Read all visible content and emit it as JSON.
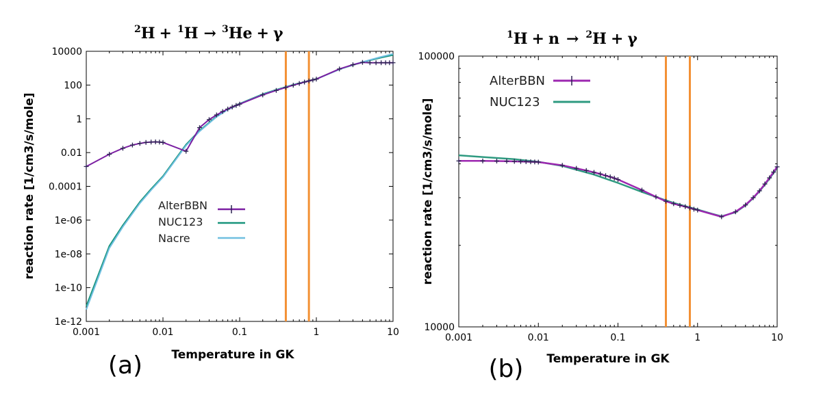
{
  "colors": {
    "alterbbn": "#7b1fa2",
    "alterbbn_b": "#9c27b0",
    "nuc123": "#17937a",
    "nuc123_b": "#2e9a80",
    "nacre": "#6fbfe0",
    "marker": "#2a2350",
    "vline": "#f39034"
  },
  "chart_data": [
    {
      "type": "line",
      "panel_label": "(a)",
      "title": {
        "a_sup": "2",
        "a": "H",
        "b_sup": "1",
        "b": "H",
        "c_sup": "3",
        "c": "He",
        "gamma": "γ",
        "plus": "+",
        "arrow": "→"
      },
      "xlabel": "Temperature in GK",
      "ylabel": "reaction rate [1/cm3/s/mole]",
      "xscale": "log",
      "yscale": "log",
      "xlim": [
        0.001,
        10
      ],
      "ylim": [
        1e-12,
        10000
      ],
      "xticks": [
        {
          "v": 0.001,
          "label": "0.001"
        },
        {
          "v": 0.01,
          "label": "0.01"
        },
        {
          "v": 0.1,
          "label": "0.1"
        },
        {
          "v": 1,
          "label": "1"
        },
        {
          "v": 10,
          "label": "10"
        }
      ],
      "yticks": [
        {
          "v": 1e-12,
          "label": "1e-12"
        },
        {
          "v": 1e-10,
          "label": "1e-10"
        },
        {
          "v": 1e-08,
          "label": "1e-08"
        },
        {
          "v": 1e-06,
          "label": "1e-06"
        },
        {
          "v": 0.0001,
          "label": "0.0001"
        },
        {
          "v": 0.01,
          "label": "0.01"
        },
        {
          "v": 1,
          "label": "1"
        },
        {
          "v": 100,
          "label": "100"
        },
        {
          "v": 10000,
          "label": "10000"
        }
      ],
      "vlines": [
        0.4,
        0.8
      ],
      "legend": [
        "AlterBBN",
        "NUC123",
        "Nacre"
      ],
      "series": [
        {
          "name": "AlterBBN",
          "color_key": "alterbbn",
          "markers": true,
          "x": [
            0.001,
            0.002,
            0.003,
            0.004,
            0.005,
            0.006,
            0.007,
            0.008,
            0.009,
            0.01,
            0.02,
            0.03,
            0.04,
            0.05,
            0.06,
            0.07,
            0.08,
            0.09,
            0.1,
            0.2,
            0.3,
            0.4,
            0.5,
            0.6,
            0.7,
            0.8,
            0.9,
            1,
            2,
            3,
            4,
            5,
            6,
            7,
            8,
            9,
            10
          ],
          "y": [
            0.0015,
            0.008,
            0.018,
            0.028,
            0.035,
            0.04,
            0.042,
            0.043,
            0.042,
            0.04,
            0.012,
            0.3,
            0.9,
            1.7,
            2.7,
            3.8,
            5,
            6.2,
            7.4,
            26,
            48,
            72,
            98,
            124,
            150,
            175,
            200,
            225,
            900,
            1600,
            2200,
            2100,
            2100,
            2100,
            2100,
            2100,
            2100
          ]
        },
        {
          "name": "NUC123",
          "color_key": "nuc123",
          "markers": false,
          "x": [
            0.001,
            0.002,
            0.003,
            0.005,
            0.007,
            0.01,
            0.02,
            0.03,
            0.05,
            0.07,
            0.1,
            0.2,
            0.3,
            0.5,
            0.7,
            1,
            2,
            3,
            5,
            7,
            10
          ],
          "y": [
            8e-12,
            3e-08,
            5e-07,
            1.2e-05,
            7e-05,
            0.0004,
            0.03,
            0.2,
            1.4,
            3.8,
            8,
            29,
            53,
            105,
            155,
            230,
            850,
            1550,
            2900,
            4200,
            6000
          ]
        },
        {
          "name": "Nacre",
          "color_key": "nacre",
          "markers": false,
          "x": [
            0.001,
            0.002,
            0.003,
            0.005,
            0.007,
            0.01,
            0.02,
            0.03,
            0.05,
            0.07,
            0.1,
            0.2,
            0.3,
            0.5,
            0.7,
            1,
            2,
            3,
            5,
            7,
            10
          ],
          "y": [
            5e-12,
            2.2e-08,
            4e-07,
            1e-05,
            6e-05,
            0.00035,
            0.026,
            0.18,
            1.3,
            3.5,
            7.5,
            27,
            50,
            100,
            150,
            225,
            850,
            1600,
            3100,
            4700,
            7000
          ]
        }
      ]
    },
    {
      "type": "line",
      "panel_label": "(b)",
      "title": {
        "a_sup": "1",
        "a": "H",
        "plus": "+",
        "n": "n",
        "arrow": "→",
        "c_sup": "2",
        "c": "H",
        "gamma": "γ"
      },
      "xlabel": "Temperature in GK",
      "ylabel": "reaction rate [1/cm3/s/mole]",
      "xscale": "log",
      "yscale": "log",
      "xlim": [
        0.001,
        10
      ],
      "ylim": [
        10000,
        100000
      ],
      "xticks": [
        {
          "v": 0.001,
          "label": "0.001"
        },
        {
          "v": 0.01,
          "label": "0.01"
        },
        {
          "v": 0.1,
          "label": "0.1"
        },
        {
          "v": 1,
          "label": "1"
        },
        {
          "v": 10,
          "label": "10"
        }
      ],
      "yticks": [
        {
          "v": 10000,
          "label": "10000"
        },
        {
          "v": 100000,
          "label": "100000"
        }
      ],
      "vlines": [
        0.4,
        0.8
      ],
      "legend": [
        "AlterBBN",
        "NUC123"
      ],
      "series": [
        {
          "name": "AlterBBN",
          "color_key": "alterbbn_b",
          "markers": true,
          "x": [
            0.001,
            0.002,
            0.003,
            0.004,
            0.005,
            0.006,
            0.007,
            0.008,
            0.009,
            0.01,
            0.02,
            0.03,
            0.04,
            0.05,
            0.06,
            0.07,
            0.08,
            0.09,
            0.1,
            0.2,
            0.3,
            0.4,
            0.5,
            0.6,
            0.7,
            0.8,
            0.9,
            1,
            2,
            3,
            4,
            5,
            6,
            7,
            8,
            9,
            10
          ],
          "y": [
            41000,
            41000,
            40950,
            40900,
            40850,
            40800,
            40750,
            40700,
            40650,
            40600,
            39500,
            38500,
            37800,
            37200,
            36700,
            36200,
            35800,
            35400,
            35000,
            32000,
            30200,
            29100,
            28500,
            28100,
            27800,
            27500,
            27200,
            27000,
            25500,
            26600,
            28200,
            30000,
            31800,
            33700,
            35500,
            37300,
            39000
          ]
        },
        {
          "name": "NUC123",
          "color_key": "nuc123_b",
          "markers": false,
          "x": [
            0.001,
            0.002,
            0.005,
            0.01,
            0.02,
            0.05,
            0.1,
            0.2,
            0.3,
            0.4,
            0.5,
            0.7,
            1,
            1.5,
            2,
            3,
            4,
            5,
            6,
            7,
            8,
            9,
            10
          ],
          "y": [
            43000,
            42400,
            41600,
            40700,
            39300,
            36500,
            34000,
            31500,
            30200,
            29300,
            28700,
            27900,
            27100,
            26200,
            25600,
            26500,
            28100,
            29900,
            31700,
            33500,
            35300,
            37000,
            38800
          ]
        }
      ]
    }
  ]
}
